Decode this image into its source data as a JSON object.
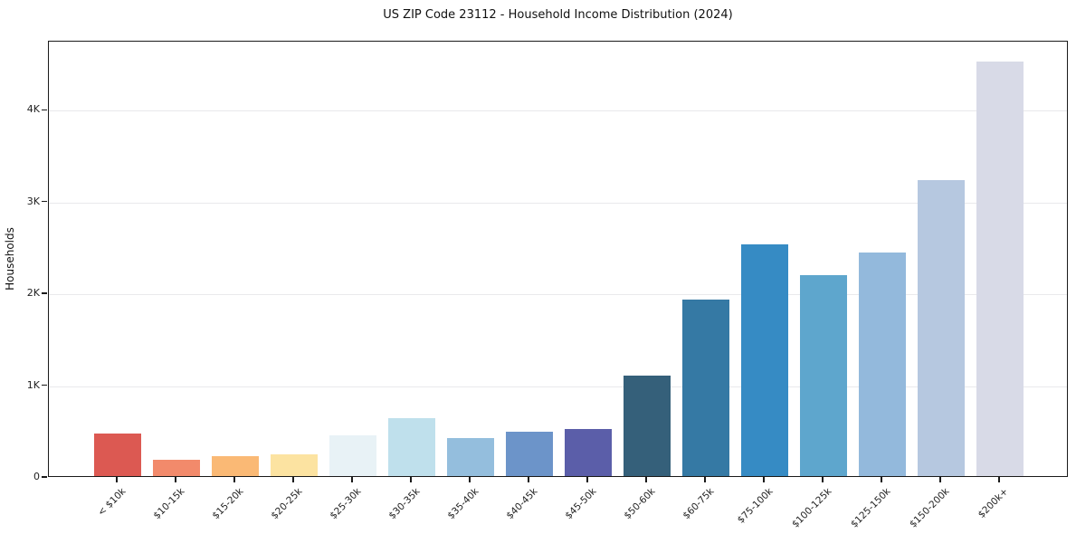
{
  "title": "US ZIP Code 23112 - Household Income Distribution (2024)",
  "chart_data": {
    "type": "bar",
    "title": "US ZIP Code 23112 - Household Income Distribution (2024)",
    "xlabel": "",
    "ylabel": "Households",
    "categories": [
      "< $10k",
      "$10-15k",
      "$15-20k",
      "$20-25k",
      "$25-30k",
      "$30-35k",
      "$35-40k",
      "$40-45k",
      "$45-50k",
      "$50-60k",
      "$60-75k",
      "$75-100k",
      "$100-125k",
      "$125-150k",
      "$150-200k",
      "$200k+"
    ],
    "values": [
      460,
      176,
      221,
      232,
      442,
      635,
      414,
      479,
      517,
      1094,
      1921,
      2520,
      2187,
      2435,
      3219,
      4516
    ],
    "bar_colors": [
      "#dc5952",
      "#f28a6b",
      "#fab975",
      "#fce3a1",
      "#e8f2f6",
      "#bfe0ec",
      "#94bedd",
      "#6c94c9",
      "#5b5ea9",
      "#35607a",
      "#3579a4",
      "#368bc4",
      "#5ea6cd",
      "#93b9dc",
      "#b6c8e0",
      "#d8dae7"
    ],
    "ylim": [
      0,
      4750
    ],
    "yticks": [
      {
        "value": 0,
        "label": "0"
      },
      {
        "value": 1000,
        "label": "1K"
      },
      {
        "value": 2000,
        "label": "2K"
      },
      {
        "value": 3000,
        "label": "3K"
      },
      {
        "value": 4000,
        "label": "4K"
      }
    ],
    "grid": "horizontal-light",
    "gridline_color": "#e9e9ec",
    "legend": "none",
    "background": "#ffffff",
    "x_label_rotation_deg": 45
  }
}
